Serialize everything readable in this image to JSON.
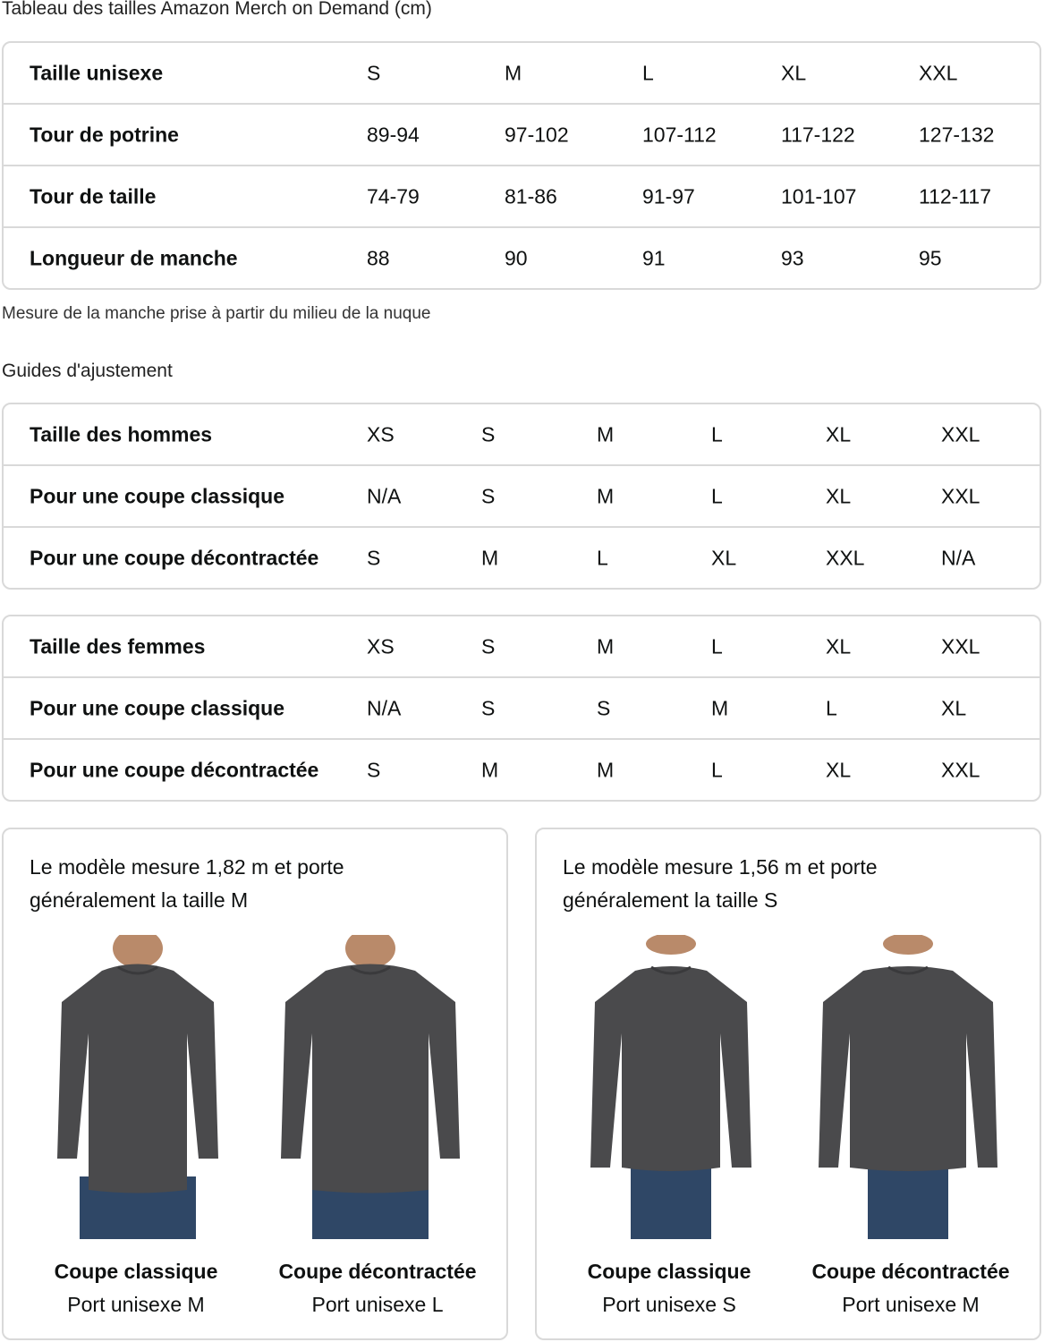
{
  "title": "Tableau des tailles Amazon Merch on Demand (cm)",
  "size_chart": {
    "rows": [
      {
        "label": "Taille unisexe",
        "values": [
          "S",
          "M",
          "L",
          "XL",
          "XXL"
        ]
      },
      {
        "label": "Tour de potrine",
        "values": [
          "89-94",
          "97-102",
          "107-112",
          "117-122",
          "127-132"
        ]
      },
      {
        "label": "Tour de taille",
        "values": [
          "74-79",
          "81-86",
          "91-97",
          "101-107",
          "112-117"
        ]
      },
      {
        "label": "Longueur de manche",
        "values": [
          "88",
          "90",
          "91",
          "93",
          "95"
        ]
      }
    ]
  },
  "note": "Mesure de la manche prise à partir du milieu de la nuque",
  "fit_title": "Guides d'ajustement",
  "men": {
    "rows": [
      {
        "label": "Taille des hommes",
        "values": [
          "XS",
          "S",
          "M",
          "L",
          "XL",
          "XXL"
        ]
      },
      {
        "label": "Pour une coupe classique",
        "values": [
          "N/A",
          "S",
          "M",
          "L",
          "XL",
          "XXL"
        ]
      },
      {
        "label": "Pour une coupe décontractée",
        "values": [
          "S",
          "M",
          "L",
          "XL",
          "XXL",
          "N/A"
        ]
      }
    ]
  },
  "women": {
    "rows": [
      {
        "label": "Taille des femmes",
        "values": [
          "XS",
          "S",
          "M",
          "L",
          "XL",
          "XXL"
        ]
      },
      {
        "label": "Pour une coupe classique",
        "values": [
          "N/A",
          "S",
          "S",
          "M",
          "L",
          "XL"
        ]
      },
      {
        "label": "Pour une coupe décontractée",
        "values": [
          "S",
          "M",
          "M",
          "L",
          "XL",
          "XXL"
        ]
      }
    ]
  },
  "panels": [
    {
      "title": "Le modèle mesure 1,82 m et porte généralement la taille M",
      "figures": [
        {
          "fit": "Coupe classique",
          "size": "Port unisexe M"
        },
        {
          "fit": "Coupe décontractée",
          "size": "Port unisexe L"
        }
      ]
    },
    {
      "title": "Le modèle mesure 1,56 m et porte généralement la taille S",
      "figures": [
        {
          "fit": "Coupe classique",
          "size": "Port unisexe S"
        },
        {
          "fit": "Coupe décontractée",
          "size": "Port unisexe M"
        }
      ]
    }
  ],
  "colors": {
    "border": "#d9d9d9",
    "shirt": "#4a4a4c",
    "jeans": "#2f4766"
  }
}
